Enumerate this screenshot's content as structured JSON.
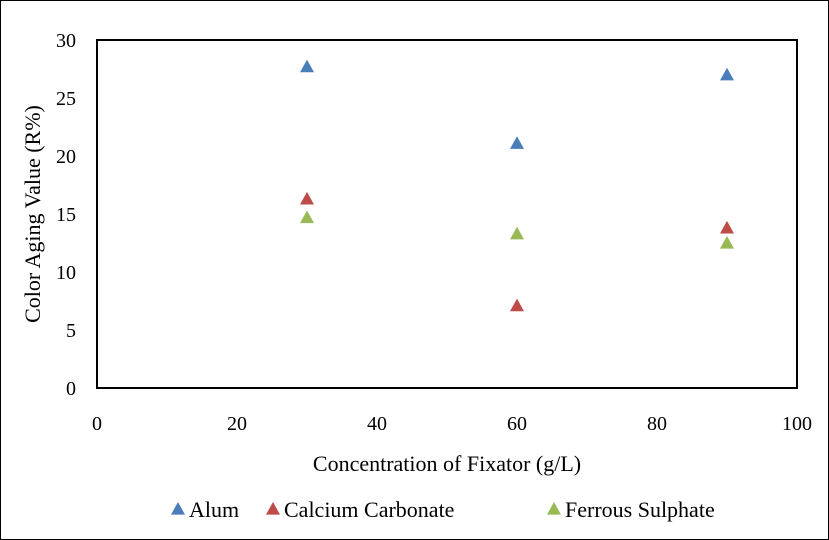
{
  "chart_data": {
    "type": "scatter",
    "title": "",
    "xlabel": "Concentration of Fixator (g/L)",
    "ylabel": "Color Aging Value (R%)",
    "xlim": [
      0,
      100
    ],
    "ylim": [
      0,
      30
    ],
    "x_ticks": [
      "0",
      "20",
      "40",
      "60",
      "80",
      "100"
    ],
    "y_ticks": [
      "0",
      "5",
      "10",
      "15",
      "20",
      "25",
      "30"
    ],
    "grid": false,
    "legend_position": "bottom",
    "marker": "triangle",
    "series": [
      {
        "name": "Alum",
        "color": "#4a7ebb",
        "points": [
          {
            "x": 30,
            "y": 27.7
          },
          {
            "x": 60,
            "y": 21.1
          },
          {
            "x": 90,
            "y": 27.0
          }
        ]
      },
      {
        "name": "Calcium Carbonate",
        "color": "#be4b48",
        "points": [
          {
            "x": 30,
            "y": 16.3
          },
          {
            "x": 60,
            "y": 7.1
          },
          {
            "x": 90,
            "y": 13.8
          }
        ]
      },
      {
        "name": "Ferrous Sulphate",
        "color": "#98b954",
        "points": [
          {
            "x": 30,
            "y": 14.7
          },
          {
            "x": 60,
            "y": 13.3
          },
          {
            "x": 90,
            "y": 12.5
          }
        ]
      }
    ]
  }
}
